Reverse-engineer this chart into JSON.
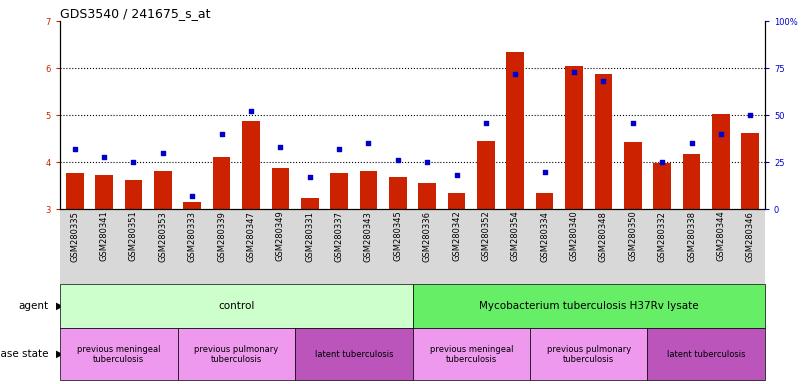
{
  "title": "GDS3540 / 241675_s_at",
  "samples": [
    "GSM280335",
    "GSM280341",
    "GSM280351",
    "GSM280353",
    "GSM280333",
    "GSM280339",
    "GSM280347",
    "GSM280349",
    "GSM280331",
    "GSM280337",
    "GSM280343",
    "GSM280345",
    "GSM280336",
    "GSM280342",
    "GSM280352",
    "GSM280354",
    "GSM280334",
    "GSM280340",
    "GSM280348",
    "GSM280350",
    "GSM280332",
    "GSM280338",
    "GSM280344",
    "GSM280346"
  ],
  "bar_values": [
    3.78,
    3.72,
    3.62,
    3.82,
    3.15,
    4.12,
    4.88,
    3.88,
    3.25,
    3.78,
    3.82,
    3.68,
    3.55,
    3.35,
    4.45,
    6.35,
    3.35,
    6.05,
    5.88,
    4.42,
    3.98,
    4.18,
    5.02,
    4.62
  ],
  "dot_values": [
    32,
    28,
    25,
    30,
    7,
    40,
    52,
    33,
    17,
    32,
    35,
    26,
    25,
    18,
    46,
    72,
    20,
    73,
    68,
    46,
    25,
    35,
    40,
    50
  ],
  "ylim_left": [
    3.0,
    7.0
  ],
  "ylim_right": [
    0,
    100
  ],
  "yticks_left": [
    3,
    4,
    5,
    6,
    7
  ],
  "yticks_right": [
    0,
    25,
    50,
    75,
    100
  ],
  "bar_color": "#cc2200",
  "dot_color": "#0000cc",
  "bar_width": 0.6,
  "agent_groups": [
    {
      "label": "control",
      "start": 0,
      "end": 12,
      "color": "#ccffcc"
    },
    {
      "label": "Mycobacterium tuberculosis H37Rv lysate",
      "start": 12,
      "end": 24,
      "color": "#66ee66"
    }
  ],
  "disease_groups": [
    {
      "label": "previous meningeal\ntuberculosis",
      "start": 0,
      "end": 4,
      "color": "#ee99ee"
    },
    {
      "label": "previous pulmonary\ntuberculosis",
      "start": 4,
      "end": 8,
      "color": "#ee99ee"
    },
    {
      "label": "latent tuberculosis",
      "start": 8,
      "end": 12,
      "color": "#bb55bb"
    },
    {
      "label": "previous meningeal\ntuberculosis",
      "start": 12,
      "end": 16,
      "color": "#ee99ee"
    },
    {
      "label": "previous pulmonary\ntuberculosis",
      "start": 16,
      "end": 20,
      "color": "#ee99ee"
    },
    {
      "label": "latent tuberculosis",
      "start": 20,
      "end": 24,
      "color": "#bb55bb"
    }
  ],
  "agent_label": "agent",
  "disease_label": "disease state",
  "background_color": "#ffffff",
  "title_fontsize": 9,
  "tick_fontsize": 6,
  "label_fontsize": 8
}
